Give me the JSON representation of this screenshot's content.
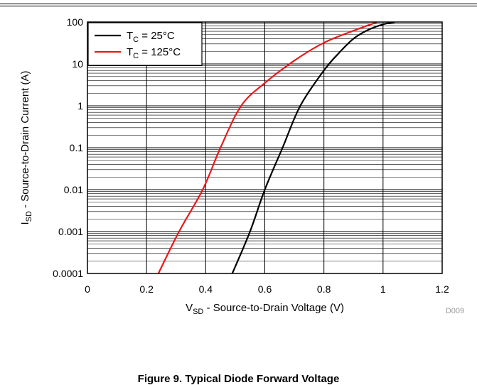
{
  "chart_data": {
    "type": "line",
    "xlabel_main": "V",
    "xlabel_sub": "SD",
    "xlabel_rest": " - Source-to-Drain Voltage (V)",
    "ylabel_main": "I",
    "ylabel_sub": "SD",
    "ylabel_rest": " - Source-to-Drain Current (A)",
    "xlim": [
      0,
      1.2
    ],
    "ylim": [
      0.0001,
      100
    ],
    "yscale": "log",
    "grid": true,
    "legend_placement": "top-left",
    "x_ticks": [
      "0",
      "0.2",
      "0.4",
      "0.6",
      "0.8",
      "1",
      "1.2"
    ],
    "y_ticks": [
      "100",
      "10",
      "1",
      "0.1",
      "0.01",
      "0.001",
      "0.0001"
    ],
    "code": "D009",
    "caption": "Figure 9. Typical Diode Forward Voltage",
    "series": [
      {
        "label_main": "T",
        "label_sub": "C",
        "label_rest": " = 25°C",
        "color": "#000000",
        "points": [
          [
            0.49,
            0.0001
          ],
          [
            0.55,
            0.001
          ],
          [
            0.6,
            0.01
          ],
          [
            0.66,
            0.1
          ],
          [
            0.72,
            1
          ],
          [
            0.8,
            7
          ],
          [
            0.85,
            18
          ],
          [
            0.9,
            40
          ],
          [
            0.95,
            65
          ],
          [
            1.0,
            88
          ],
          [
            1.04,
            100
          ]
        ]
      },
      {
        "label_main": "T",
        "label_sub": "C",
        "label_rest": " = 125°C",
        "color": "#e8191b",
        "points": [
          [
            0.24,
            0.0001
          ],
          [
            0.31,
            0.001
          ],
          [
            0.39,
            0.01
          ],
          [
            0.45,
            0.1
          ],
          [
            0.52,
            1
          ],
          [
            0.6,
            3.5
          ],
          [
            0.7,
            12
          ],
          [
            0.8,
            32
          ],
          [
            0.9,
            62
          ],
          [
            0.98,
            100
          ]
        ]
      }
    ]
  }
}
